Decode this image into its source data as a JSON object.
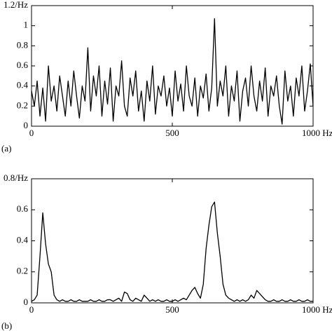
{
  "chart_data": [
    {
      "type": "line",
      "label": "(a)",
      "color": "#000000",
      "x": [
        0,
        10,
        20,
        30,
        40,
        50,
        60,
        70,
        80,
        90,
        100,
        110,
        120,
        130,
        140,
        150,
        160,
        170,
        180,
        190,
        200,
        210,
        220,
        230,
        240,
        250,
        260,
        270,
        280,
        290,
        300,
        310,
        320,
        330,
        340,
        350,
        360,
        370,
        380,
        390,
        400,
        410,
        420,
        430,
        440,
        450,
        460,
        470,
        480,
        490,
        500,
        510,
        520,
        530,
        540,
        550,
        560,
        570,
        580,
        590,
        600,
        610,
        620,
        630,
        640,
        650,
        660,
        670,
        680,
        690,
        700,
        710,
        720,
        730,
        740,
        750,
        760,
        770,
        780,
        790,
        800,
        810,
        820,
        830,
        840,
        850,
        860,
        870,
        880,
        890,
        900,
        910,
        920,
        930,
        940,
        950,
        960,
        970,
        980,
        990,
        1000
      ],
      "values": [
        0.35,
        0.2,
        0.45,
        0.1,
        0.38,
        0.05,
        0.6,
        0.25,
        0.4,
        0.15,
        0.5,
        0.3,
        0.1,
        0.45,
        0.2,
        0.55,
        0.3,
        0.08,
        0.4,
        0.25,
        0.78,
        0.15,
        0.5,
        0.3,
        0.6,
        0.1,
        0.45,
        0.22,
        0.58,
        0.05,
        0.4,
        0.3,
        0.65,
        0.2,
        0.1,
        0.48,
        0.3,
        0.55,
        0.15,
        0.35,
        0.05,
        0.45,
        0.25,
        0.6,
        0.12,
        0.4,
        0.3,
        0.5,
        0.2,
        0.38,
        0.1,
        0.55,
        0.25,
        0.42,
        0.15,
        0.6,
        0.3,
        0.2,
        0.48,
        0.1,
        0.4,
        0.28,
        0.52,
        0.15,
        0.38,
        1.07,
        0.2,
        0.45,
        0.3,
        0.6,
        0.1,
        0.4,
        0.25,
        0.55,
        0.05,
        0.35,
        0.48,
        0.2,
        0.6,
        0.3,
        0.15,
        0.45,
        0.25,
        0.58,
        0.1,
        0.4,
        0.3,
        0.5,
        0.2,
        0.02,
        0.55,
        0.25,
        0.4,
        0.1,
        0.48,
        0.3,
        0.6,
        0.15,
        0.35,
        0.62,
        0.2
      ],
      "xlim": [
        0,
        1000
      ],
      "xticks": [
        0,
        500,
        {
          "value": 1000,
          "label": "1000 Hz"
        }
      ],
      "ylim": [
        0,
        1.2
      ],
      "yticks": [
        0,
        0.2,
        0.4,
        0.6,
        0.8,
        1.0,
        {
          "value": 1.2,
          "label": "1.2/Hz"
        }
      ]
    },
    {
      "type": "line",
      "label": "(b)",
      "color": "#000000",
      "x": [
        0,
        10,
        20,
        30,
        40,
        50,
        60,
        70,
        80,
        90,
        100,
        110,
        120,
        130,
        140,
        150,
        160,
        170,
        180,
        190,
        200,
        210,
        220,
        230,
        240,
        250,
        260,
        270,
        280,
        290,
        300,
        310,
        320,
        330,
        340,
        350,
        360,
        370,
        380,
        390,
        400,
        410,
        420,
        430,
        440,
        450,
        460,
        470,
        480,
        490,
        500,
        510,
        520,
        530,
        540,
        550,
        560,
        570,
        580,
        590,
        600,
        610,
        620,
        630,
        640,
        650,
        660,
        670,
        680,
        690,
        700,
        710,
        720,
        730,
        740,
        750,
        760,
        770,
        780,
        790,
        800,
        810,
        820,
        830,
        840,
        850,
        860,
        870,
        880,
        890,
        900,
        910,
        920,
        930,
        940,
        950,
        960,
        970,
        980,
        990,
        1000
      ],
      "values": [
        0.01,
        0.02,
        0.05,
        0.3,
        0.58,
        0.38,
        0.25,
        0.2,
        0.05,
        0.02,
        0.01,
        0.02,
        0.01,
        0.01,
        0.02,
        0.01,
        0.01,
        0.02,
        0.01,
        0.01,
        0.01,
        0.02,
        0.01,
        0.01,
        0.02,
        0.01,
        0.01,
        0.02,
        0.02,
        0.01,
        0.02,
        0.03,
        0.01,
        0.07,
        0.06,
        0.02,
        0.01,
        0.03,
        0.02,
        0.01,
        0.05,
        0.03,
        0.01,
        0.02,
        0.01,
        0.02,
        0.01,
        0.01,
        0.02,
        0.01,
        0.01,
        0.02,
        0.01,
        0.02,
        0.03,
        0.02,
        0.05,
        0.08,
        0.1,
        0.06,
        0.03,
        0.12,
        0.35,
        0.5,
        0.62,
        0.65,
        0.45,
        0.3,
        0.12,
        0.05,
        0.03,
        0.02,
        0.01,
        0.02,
        0.01,
        0.02,
        0.01,
        0.02,
        0.05,
        0.03,
        0.08,
        0.06,
        0.04,
        0.02,
        0.01,
        0.01,
        0.02,
        0.01,
        0.01,
        0.02,
        0.01,
        0.01,
        0.02,
        0.01,
        0.01,
        0.02,
        0.01,
        0.01,
        0.02,
        0.01,
        0.01
      ],
      "xlim": [
        0,
        1000
      ],
      "xticks": [
        0,
        500,
        {
          "value": 1000,
          "label": "1000 Hz"
        }
      ],
      "ylim": [
        0,
        0.8
      ],
      "yticks": [
        0,
        0.2,
        0.4,
        0.6,
        {
          "value": 0.8,
          "label": "0.8/Hz"
        }
      ]
    }
  ]
}
